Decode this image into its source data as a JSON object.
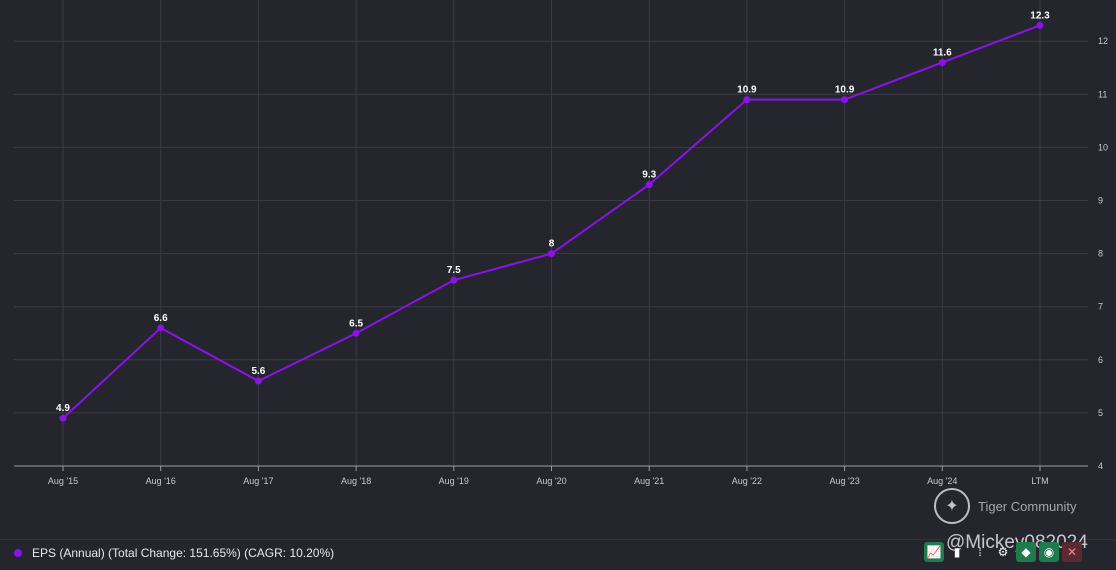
{
  "chart_data": {
    "type": "line",
    "categories": [
      "Aug '15",
      "Aug '16",
      "Aug '17",
      "Aug '18",
      "Aug '19",
      "Aug '20",
      "Aug '21",
      "Aug '22",
      "Aug '23",
      "Aug '24",
      "LTM"
    ],
    "series": [
      {
        "name": "EPS (Annual) (Total Change: 151.65%) (CAGR: 10.20%)",
        "values": [
          4.9,
          6.6,
          5.6,
          6.5,
          7.5,
          8,
          9.3,
          10.9,
          10.9,
          11.6,
          12.3
        ],
        "labels": [
          "4.9",
          "6.6",
          "5.6",
          "6.5",
          "7.5",
          "8",
          "9.3",
          "10.9",
          "10.9",
          "11.6",
          "12.3"
        ],
        "color": "#8b12e8"
      }
    ],
    "yticks": [
      "4",
      "5",
      "6",
      "7",
      "8",
      "9",
      "10",
      "11",
      "12"
    ],
    "ylim": [
      4,
      12.4
    ],
    "y_axis_position": "right",
    "grid": true,
    "legend": "bottom-left"
  },
  "brand": {
    "name": "Tiger Community"
  },
  "watermark": "@Mickey082024",
  "toolbar": {
    "icons": [
      "line-chart-icon",
      "bar-chart-icon",
      "more-icon",
      "gear-icon",
      "tag-icon",
      "eye-icon",
      "close-icon"
    ],
    "more_label": "⁞"
  },
  "colors": {
    "background": "#24252d",
    "accent": "#8b12e8",
    "grid": "#3a3b45"
  }
}
